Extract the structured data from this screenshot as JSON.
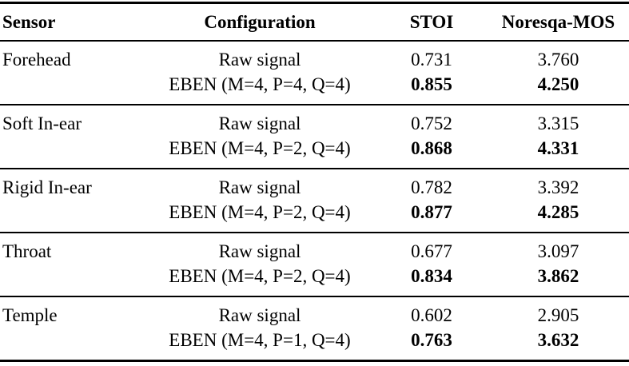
{
  "table": {
    "columns": [
      "Sensor",
      "Configuration",
      "STOI",
      "Noresqa-MOS"
    ],
    "groups": [
      {
        "sensor": "Forehead",
        "rows": [
          {
            "config": "Raw signal",
            "stoi": "0.731",
            "mos": "3.760"
          },
          {
            "config": "EBEN (M=4, P=4, Q=4)",
            "stoi": "0.855",
            "mos": "4.250"
          }
        ]
      },
      {
        "sensor": "Soft In-ear",
        "rows": [
          {
            "config": "Raw signal",
            "stoi": "0.752",
            "mos": "3.315"
          },
          {
            "config": "EBEN (M=4, P=2, Q=4)",
            "stoi": "0.868",
            "mos": "4.331"
          }
        ]
      },
      {
        "sensor": "Rigid In-ear",
        "rows": [
          {
            "config": "Raw signal",
            "stoi": "0.782",
            "mos": "3.392"
          },
          {
            "config": "EBEN (M=4, P=2, Q=4)",
            "stoi": "0.877",
            "mos": "4.285"
          }
        ]
      },
      {
        "sensor": "Throat",
        "rows": [
          {
            "config": "Raw signal",
            "stoi": "0.677",
            "mos": "3.097"
          },
          {
            "config": "EBEN (M=4, P=2, Q=4)",
            "stoi": "0.834",
            "mos": "3.862"
          }
        ]
      },
      {
        "sensor": "Temple",
        "rows": [
          {
            "config": "Raw signal",
            "stoi": "0.602",
            "mos": "2.905"
          },
          {
            "config": "EBEN (M=4, P=1, Q=4)",
            "stoi": "0.763",
            "mos": "3.632"
          }
        ]
      }
    ]
  }
}
